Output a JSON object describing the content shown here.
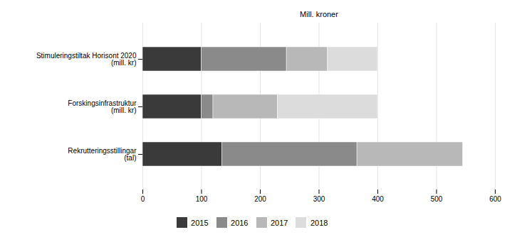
{
  "chart_data": {
    "type": "bar",
    "orientation": "horizontal",
    "stacked": true,
    "annotations": [
      "Mill. kroner"
    ],
    "categories": [
      "Stimuleringstiltak Horisont 2020\n(mill. kr)",
      "Forskingsinfrastruktur\n(mill. kr)",
      "Rekrutteringsstillingar\n(tal)"
    ],
    "series": [
      {
        "name": "2015",
        "color": "#3a3a3a",
        "values": [
          100,
          100,
          135
        ]
      },
      {
        "name": "2016",
        "color": "#8a8a8a",
        "values": [
          145,
          20,
          230
        ]
      },
      {
        "name": "2017",
        "color": "#b8b8b8",
        "values": [
          70,
          110,
          180
        ]
      },
      {
        "name": "2018",
        "color": "#dcdcdc",
        "values": [
          85,
          170,
          0
        ]
      }
    ],
    "xlim": [
      0,
      600
    ],
    "xticks": [
      0,
      100,
      200,
      300,
      400,
      500,
      600
    ],
    "grid": true,
    "legend": "bottom"
  }
}
